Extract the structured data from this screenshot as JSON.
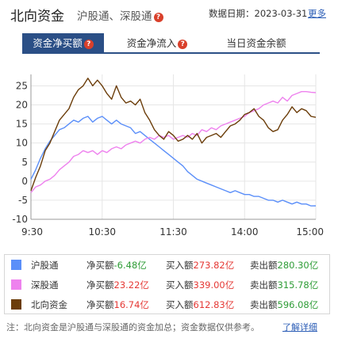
{
  "header": {
    "title": "北向资金",
    "subtitle": "沪股通、深股通",
    "date_label": "数据日期：2023-03-31",
    "more_link": "更多"
  },
  "tabs": [
    {
      "label": "资金净买额",
      "active": true,
      "has_help": true
    },
    {
      "label": "资金净流入",
      "active": false,
      "has_help": true
    },
    {
      "label": "当日资金余额",
      "active": false,
      "has_help": false
    }
  ],
  "colors": {
    "accent": "#2b4f86",
    "series_hgt": "#5b8ff9",
    "series_sgt": "#ee82ee",
    "series_north": "#6b3d0a",
    "up": "#e53935",
    "down": "#2e9c36",
    "help": "#d9402b"
  },
  "chart_data": {
    "type": "line",
    "y_ticks": [
      25,
      20,
      15,
      10,
      5,
      0,
      -5,
      -10
    ],
    "ylim": [
      -10,
      28
    ],
    "x_ticks": [
      "9:30",
      "10:30",
      "11:30",
      "14:00",
      "15:00"
    ],
    "grid": true,
    "series": [
      {
        "name": "沪股通",
        "color": "#5b8ff9",
        "points": [
          [
            0,
            0.5
          ],
          [
            4,
            3
          ],
          [
            8,
            6
          ],
          [
            12,
            8.5
          ],
          [
            16,
            10.5
          ],
          [
            20,
            12
          ],
          [
            24,
            13.5
          ],
          [
            28,
            14
          ],
          [
            32,
            15
          ],
          [
            36,
            16
          ],
          [
            40,
            15.5
          ],
          [
            44,
            16.5
          ],
          [
            48,
            17
          ],
          [
            52,
            15.5
          ],
          [
            56,
            16.5
          ],
          [
            60,
            17
          ],
          [
            64,
            16
          ],
          [
            68,
            15
          ],
          [
            72,
            16
          ],
          [
            76,
            15
          ],
          [
            80,
            14.5
          ],
          [
            84,
            14
          ],
          [
            88,
            12.5
          ],
          [
            92,
            13
          ],
          [
            96,
            12
          ],
          [
            100,
            11
          ],
          [
            104,
            10
          ],
          [
            108,
            9
          ],
          [
            112,
            8
          ],
          [
            116,
            7
          ],
          [
            120,
            6
          ],
          [
            124,
            5
          ],
          [
            128,
            4
          ],
          [
            132,
            2.5
          ],
          [
            136,
            1.5
          ],
          [
            140,
            0.5
          ],
          [
            144,
            0
          ],
          [
            148,
            -0.5
          ],
          [
            152,
            -1
          ],
          [
            156,
            -1.5
          ],
          [
            160,
            -2
          ],
          [
            164,
            -2.5
          ],
          [
            168,
            -3
          ],
          [
            172,
            -2.5
          ],
          [
            176,
            -3
          ],
          [
            180,
            -3.5
          ],
          [
            184,
            -3.5
          ],
          [
            188,
            -4
          ],
          [
            192,
            -4
          ],
          [
            196,
            -4.5
          ],
          [
            200,
            -5
          ],
          [
            204,
            -5
          ],
          [
            208,
            -5.5
          ],
          [
            212,
            -5
          ],
          [
            216,
            -5.5
          ],
          [
            220,
            -6
          ],
          [
            224,
            -5.5
          ],
          [
            228,
            -6
          ],
          [
            232,
            -6
          ],
          [
            236,
            -6.5
          ],
          [
            240,
            -6.48
          ]
        ]
      },
      {
        "name": "深股通",
        "color": "#ee82ee",
        "points": [
          [
            0,
            -3
          ],
          [
            4,
            -1.5
          ],
          [
            8,
            -1
          ],
          [
            12,
            0
          ],
          [
            16,
            0.5
          ],
          [
            20,
            1.5
          ],
          [
            24,
            3
          ],
          [
            28,
            4
          ],
          [
            32,
            5
          ],
          [
            36,
            6.5
          ],
          [
            40,
            7
          ],
          [
            44,
            8
          ],
          [
            48,
            7.5
          ],
          [
            52,
            8
          ],
          [
            56,
            7
          ],
          [
            60,
            8
          ],
          [
            64,
            7.5
          ],
          [
            68,
            8.5
          ],
          [
            72,
            9
          ],
          [
            76,
            8.5
          ],
          [
            80,
            9.5
          ],
          [
            84,
            10
          ],
          [
            88,
            10.5
          ],
          [
            92,
            10
          ],
          [
            96,
            11
          ],
          [
            100,
            11.5
          ],
          [
            104,
            11
          ],
          [
            108,
            12
          ],
          [
            112,
            11.5
          ],
          [
            116,
            12
          ],
          [
            120,
            11
          ],
          [
            124,
            11.5
          ],
          [
            128,
            12
          ],
          [
            132,
            11.5
          ],
          [
            136,
            12.5
          ],
          [
            140,
            12
          ],
          [
            144,
            13.5
          ],
          [
            148,
            13
          ],
          [
            152,
            14
          ],
          [
            156,
            13.5
          ],
          [
            160,
            14.5
          ],
          [
            164,
            15
          ],
          [
            168,
            15.5
          ],
          [
            172,
            16
          ],
          [
            176,
            16.5
          ],
          [
            180,
            17
          ],
          [
            184,
            18
          ],
          [
            188,
            18.5
          ],
          [
            192,
            19
          ],
          [
            196,
            20
          ],
          [
            200,
            20.5
          ],
          [
            204,
            21
          ],
          [
            208,
            20.5
          ],
          [
            212,
            22
          ],
          [
            216,
            21
          ],
          [
            220,
            22.5
          ],
          [
            224,
            23
          ],
          [
            228,
            23.5
          ],
          [
            232,
            23.5
          ],
          [
            236,
            23.3
          ],
          [
            240,
            23.22
          ]
        ]
      },
      {
        "name": "北向资金",
        "color": "#6b3d0a",
        "points": [
          [
            0,
            -2.5
          ],
          [
            4,
            1
          ],
          [
            8,
            4
          ],
          [
            12,
            8
          ],
          [
            16,
            10
          ],
          [
            20,
            13
          ],
          [
            24,
            16
          ],
          [
            28,
            17.5
          ],
          [
            32,
            19
          ],
          [
            36,
            22
          ],
          [
            40,
            24
          ],
          [
            44,
            25
          ],
          [
            48,
            27
          ],
          [
            52,
            25
          ],
          [
            56,
            26.5
          ],
          [
            60,
            25
          ],
          [
            64,
            23
          ],
          [
            68,
            21.5
          ],
          [
            72,
            25
          ],
          [
            76,
            22
          ],
          [
            80,
            20.5
          ],
          [
            84,
            21
          ],
          [
            88,
            20
          ],
          [
            92,
            21.5
          ],
          [
            96,
            18
          ],
          [
            100,
            16
          ],
          [
            104,
            13.5
          ],
          [
            108,
            12
          ],
          [
            112,
            11
          ],
          [
            116,
            13
          ],
          [
            120,
            12
          ],
          [
            124,
            10.5
          ],
          [
            128,
            11
          ],
          [
            132,
            12
          ],
          [
            136,
            11
          ],
          [
            140,
            12.5
          ],
          [
            144,
            10
          ],
          [
            148,
            11.5
          ],
          [
            152,
            12
          ],
          [
            156,
            12.5
          ],
          [
            160,
            11.5
          ],
          [
            164,
            13
          ],
          [
            168,
            14.5
          ],
          [
            172,
            15
          ],
          [
            176,
            16
          ],
          [
            180,
            17.5
          ],
          [
            184,
            18
          ],
          [
            188,
            19
          ],
          [
            192,
            17
          ],
          [
            196,
            16
          ],
          [
            200,
            14
          ],
          [
            204,
            13
          ],
          [
            208,
            13.5
          ],
          [
            212,
            16
          ],
          [
            216,
            17.5
          ],
          [
            220,
            19.5
          ],
          [
            224,
            18
          ],
          [
            228,
            19
          ],
          [
            232,
            18.5
          ],
          [
            236,
            17
          ],
          [
            240,
            16.74
          ]
        ]
      }
    ]
  },
  "legend": [
    {
      "name": "沪股通",
      "swatch": "#5b8ff9",
      "net_label": "净买额",
      "net_value": "-6.48亿",
      "net_dir": "down",
      "buy_label": "买入额",
      "buy_value": "273.82亿",
      "sell_label": "卖出额",
      "sell_value": "280.30亿"
    },
    {
      "name": "深股通",
      "swatch": "#ee82ee",
      "net_label": "净买额",
      "net_value": "23.22亿",
      "net_dir": "up",
      "buy_label": "买入额",
      "buy_value": "339.00亿",
      "sell_label": "卖出额",
      "sell_value": "315.78亿"
    },
    {
      "name": "北向资金",
      "swatch": "#6b3d0a",
      "net_label": "净买额",
      "net_value": "16.74亿",
      "net_dir": "up",
      "buy_label": "买入额",
      "buy_value": "612.83亿",
      "sell_label": "卖出额",
      "sell_value": "596.08亿"
    }
  ],
  "note": {
    "text": "注：北向资金是沪股通与深股通的资金加总；资金数据仅供参考。",
    "link": "了解详细"
  }
}
